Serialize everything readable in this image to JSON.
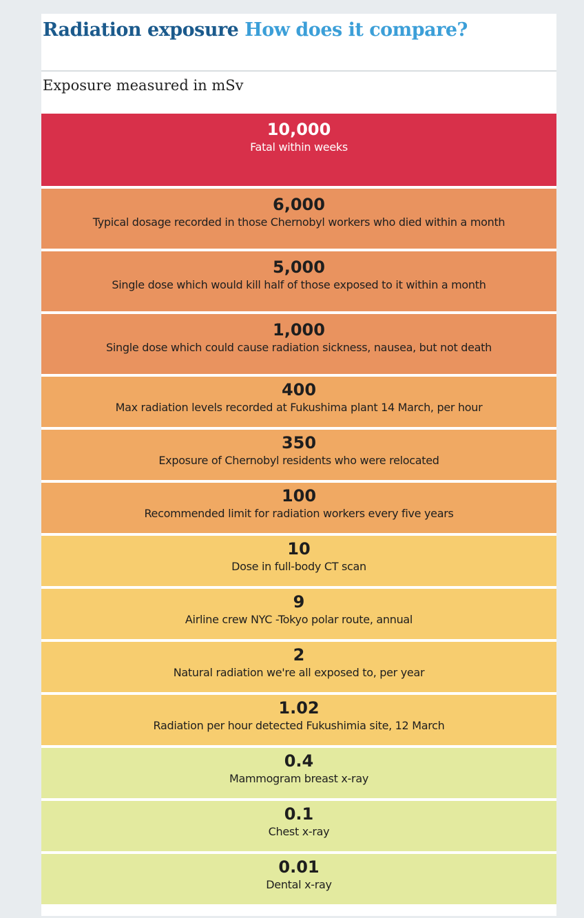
{
  "header": {
    "title": "Radiation exposure",
    "subtitle_question": "How does it compare?",
    "note": "Exposure measured in mSv"
  },
  "rows": [
    {
      "value": "10,000",
      "description": "Fatal within weeks",
      "color": "#d8304a"
    },
    {
      "value": "6,000",
      "description": "Typical dosage recorded in those Chernobyl workers who died within a month",
      "color": "#e9935f"
    },
    {
      "value": "5,000",
      "description": "Single dose which would kill half of those exposed to it within a month",
      "color": "#e9935f"
    },
    {
      "value": "1,000",
      "description": "Single dose which could cause radiation sickness, nausea, but not death",
      "color": "#e9935f"
    },
    {
      "value": "400",
      "description": "Max radiation levels recorded at Fukushima plant 14 March, per hour",
      "color": "#f0a963"
    },
    {
      "value": "350",
      "description": "Exposure of Chernobyl residents who were relocated",
      "color": "#f0a963"
    },
    {
      "value": "100",
      "description": "Recommended limit for radiation workers every five years",
      "color": "#f0a963"
    },
    {
      "value": "10",
      "description": "Dose in full-body CT scan",
      "color": "#f7cd6f"
    },
    {
      "value": "9",
      "description": "Airline crew NYC -Tokyo polar route, annual",
      "color": "#f7cd6f"
    },
    {
      "value": "2",
      "description": "Natural radiation we're all exposed to, per year",
      "color": "#f7cd6f"
    },
    {
      "value": "1.02",
      "description": "Radiation per hour detected Fukushimia site, 12 March",
      "color": "#f7cd6f"
    },
    {
      "value": "0.4",
      "description": "Mammogram breast x-ray",
      "color": "#e3ea9f"
    },
    {
      "value": "0.1",
      "description": "Chest x-ray",
      "color": "#e3ea9f"
    },
    {
      "value": "0.01",
      "description": "Dental x-ray",
      "color": "#e3ea9f"
    }
  ]
}
